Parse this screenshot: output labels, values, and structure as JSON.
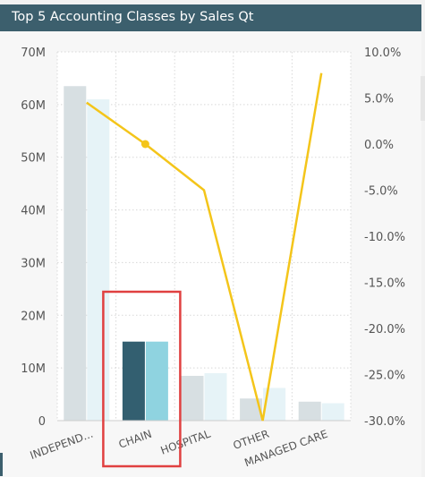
{
  "header": {
    "title": "Top 5 Accounting Classes by Sales Qt"
  },
  "colors": {
    "header_bg": "#3c5f6d",
    "bar_primary_muted": "#d7dfe2",
    "bar_secondary_muted": "#e6f3f7",
    "bar_primary_selected": "#335f70",
    "bar_secondary_selected": "#8fd3e0",
    "line": "#f4c51a",
    "highlight_box": "#e04040"
  },
  "chart_data": {
    "type": "bar",
    "categories": [
      "INDEPEND...",
      "CHAIN",
      "HOSPITAL",
      "OTHER",
      "MANAGED CARE"
    ],
    "series": [
      {
        "kind": "bar",
        "axis": "left",
        "values": [
          63.5,
          15.0,
          8.5,
          4.2,
          3.6
        ]
      },
      {
        "kind": "bar",
        "axis": "left",
        "values": [
          61.0,
          15.0,
          9.0,
          6.2,
          3.3
        ]
      },
      {
        "kind": "line",
        "axis": "right",
        "values": [
          4.5,
          0.0,
          -5.0,
          -30.0,
          7.7
        ]
      }
    ],
    "left_axis": {
      "ticks": [
        "0",
        "10M",
        "20M",
        "30M",
        "40M",
        "50M",
        "60M",
        "70M"
      ],
      "ylim": [
        0,
        70
      ]
    },
    "right_axis": {
      "ticks": [
        "-30.0%",
        "-25.0%",
        "-20.0%",
        "-15.0%",
        "-10.0%",
        "-5.0%",
        "0.0%",
        "5.0%",
        "10.0%"
      ],
      "ylim": [
        -30,
        10
      ]
    },
    "selected_category": "CHAIN",
    "marked_point": {
      "category": "CHAIN",
      "value": 0.0
    },
    "grid": true
  }
}
